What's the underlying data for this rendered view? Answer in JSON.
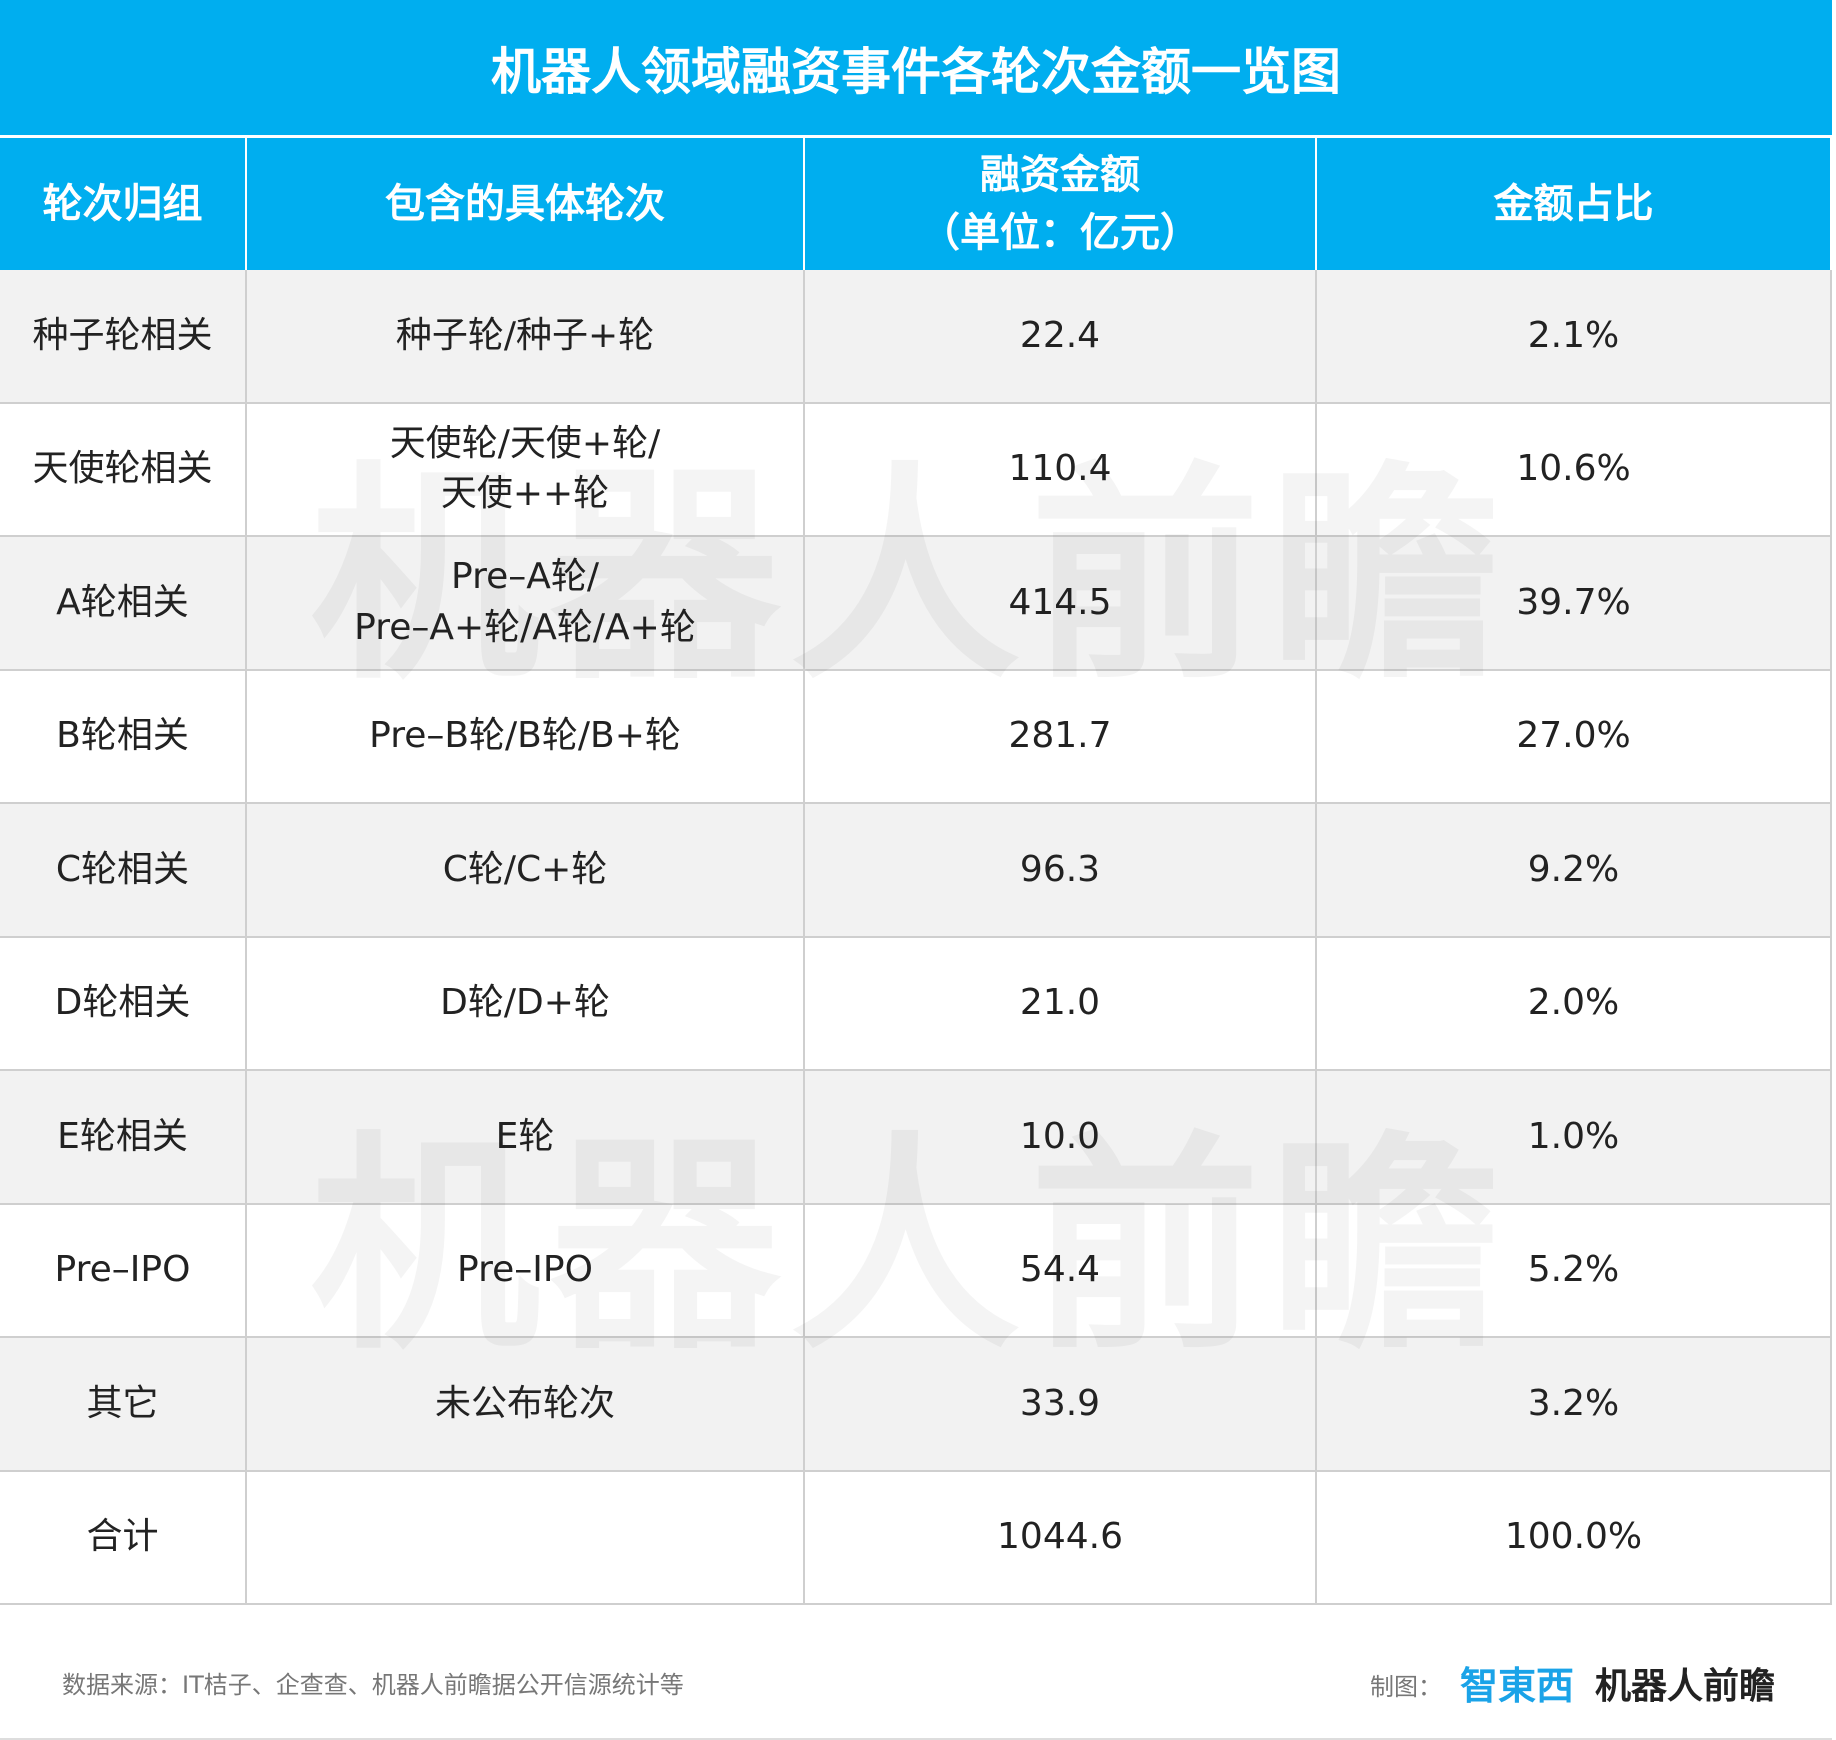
{
  "title": "机器人领域融资事件各轮次金额一览图",
  "table": {
    "header": [
      "轮次归组",
      "包含的具体轮次",
      [
        "融资金额",
        "（单位：亿元）"
      ],
      "金额占比"
    ],
    "rows": [
      {
        "group": "种子轮相关",
        "rounds": [
          "种子轮/种子+轮"
        ],
        "amount": "22.4",
        "share": "2.1%"
      },
      {
        "group": "天使轮相关",
        "rounds": [
          "天使轮/天使+轮/",
          "天使++轮"
        ],
        "amount": "110.4",
        "share": "10.6%"
      },
      {
        "group": "A轮相关",
        "rounds": [
          "Pre–A轮/",
          "Pre–A+轮/A轮/A+轮"
        ],
        "amount": "414.5",
        "share": "39.7%"
      },
      {
        "group": "B轮相关",
        "rounds": [
          "Pre–B轮/B轮/B+轮"
        ],
        "amount": "281.7",
        "share": "27.0%"
      },
      {
        "group": "C轮相关",
        "rounds": [
          "C轮/C+轮"
        ],
        "amount": "96.3",
        "share": "9.2%"
      },
      {
        "group": "D轮相关",
        "rounds": [
          "D轮/D+轮"
        ],
        "amount": "21.0",
        "share": "2.0%"
      },
      {
        "group": "E轮相关",
        "rounds": [
          "E轮"
        ],
        "amount": "10.0",
        "share": "1.0%"
      },
      {
        "group": "Pre–IPO",
        "rounds": [
          "Pre–IPO"
        ],
        "amount": "54.4",
        "share": "5.2%"
      },
      {
        "group": "其它",
        "rounds": [
          "未公布轮次"
        ],
        "amount": "33.9",
        "share": "3.2%"
      },
      {
        "group": "合计",
        "amount": "1044.6",
        "share": "100.0%"
      }
    ]
  },
  "watermark": "机器人前瞻",
  "footer": {
    "source": "数据来源：IT桔子、企查查、机器人前瞻据公开信源统计等",
    "credit": "制图：",
    "logos": [
      "智東西",
      "机器人前瞻"
    ]
  }
}
